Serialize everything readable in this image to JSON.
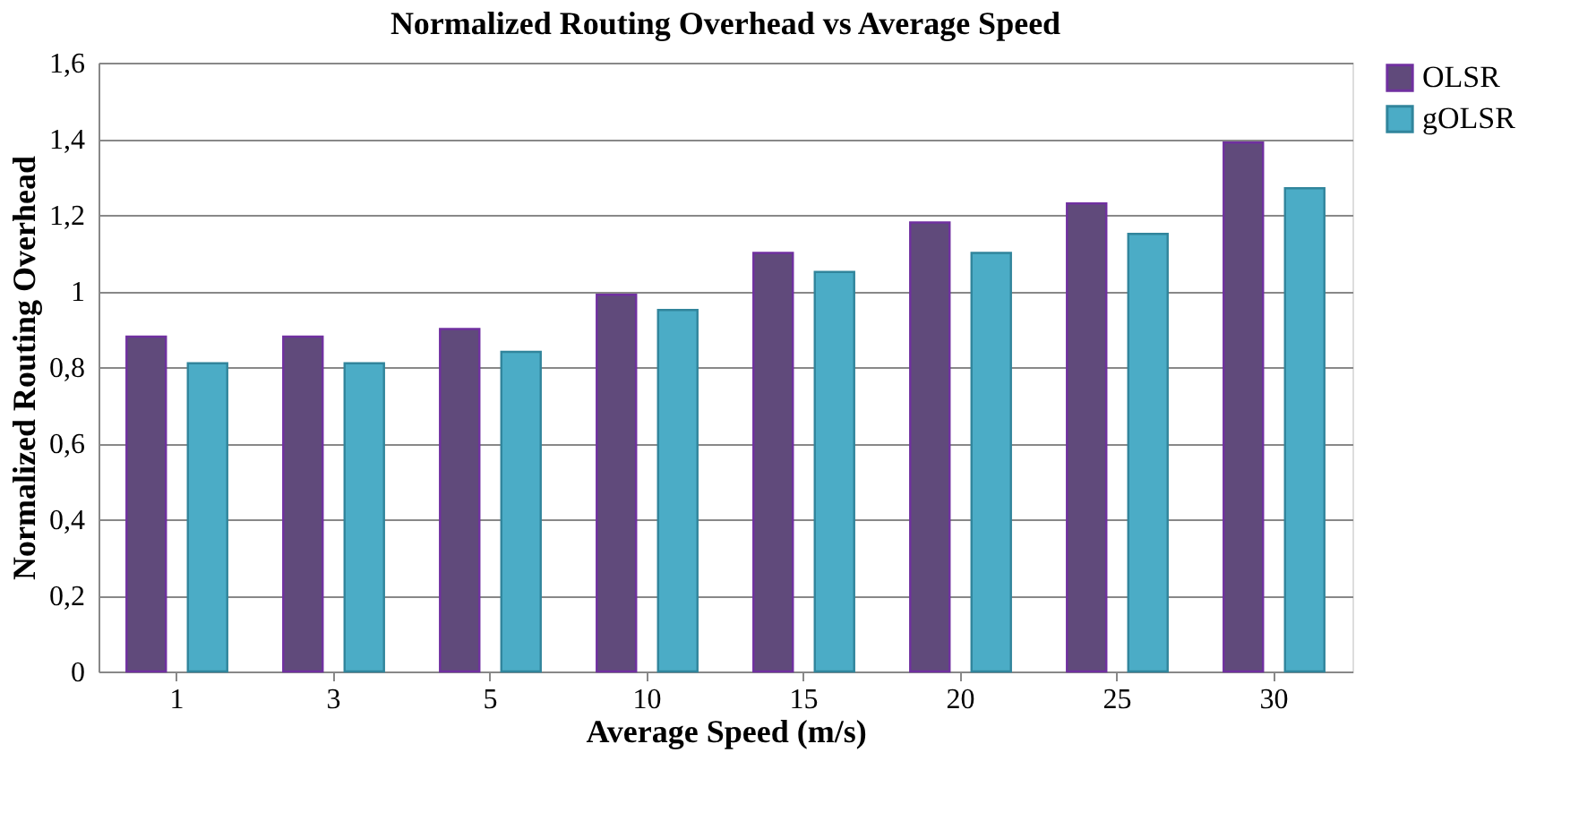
{
  "chart_data": {
    "type": "bar",
    "title": "Normalized Routing Overhead vs Average Speed",
    "xlabel": "Average Speed (m/s)",
    "ylabel": "Normalized Routing Overhead",
    "categories": [
      "1",
      "3",
      "5",
      "10",
      "15",
      "20",
      "25",
      "30"
    ],
    "series": [
      {
        "name": "OLSR",
        "color": "#604a7b",
        "values": [
          0.88,
          0.88,
          0.9,
          0.99,
          1.1,
          1.18,
          1.23,
          1.39
        ]
      },
      {
        "name": "gOLSR",
        "color": "#4bacc6",
        "values": [
          0.81,
          0.81,
          0.84,
          0.95,
          1.05,
          1.1,
          1.15,
          1.27
        ]
      }
    ],
    "ylim": [
      0,
      1.6
    ],
    "yticks": [
      0,
      {
        "value": 0.2,
        "label": "0,2"
      },
      {
        "value": 0.4,
        "label": "0,4"
      },
      {
        "value": 0.6,
        "label": "0,6"
      },
      {
        "value": 0.8,
        "label": "0,8"
      },
      1,
      {
        "value": 1.2,
        "label": "1,2"
      },
      {
        "value": 1.4,
        "label": "1,4"
      },
      {
        "value": 1.6,
        "label": "1,6"
      }
    ],
    "grid": "y",
    "legend": "right"
  }
}
